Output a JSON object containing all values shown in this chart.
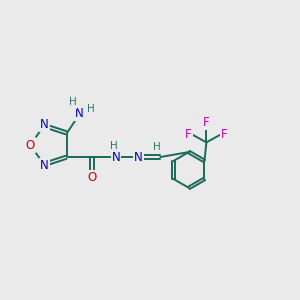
{
  "bg_color": "#eaeaea",
  "colors": {
    "N": "#0000cc",
    "O": "#cc0000",
    "F": "#cc00aa",
    "C_bond": "#1a6a5a",
    "H": "#2a7a6a"
  },
  "figsize": [
    3.0,
    3.0
  ],
  "dpi": 100
}
